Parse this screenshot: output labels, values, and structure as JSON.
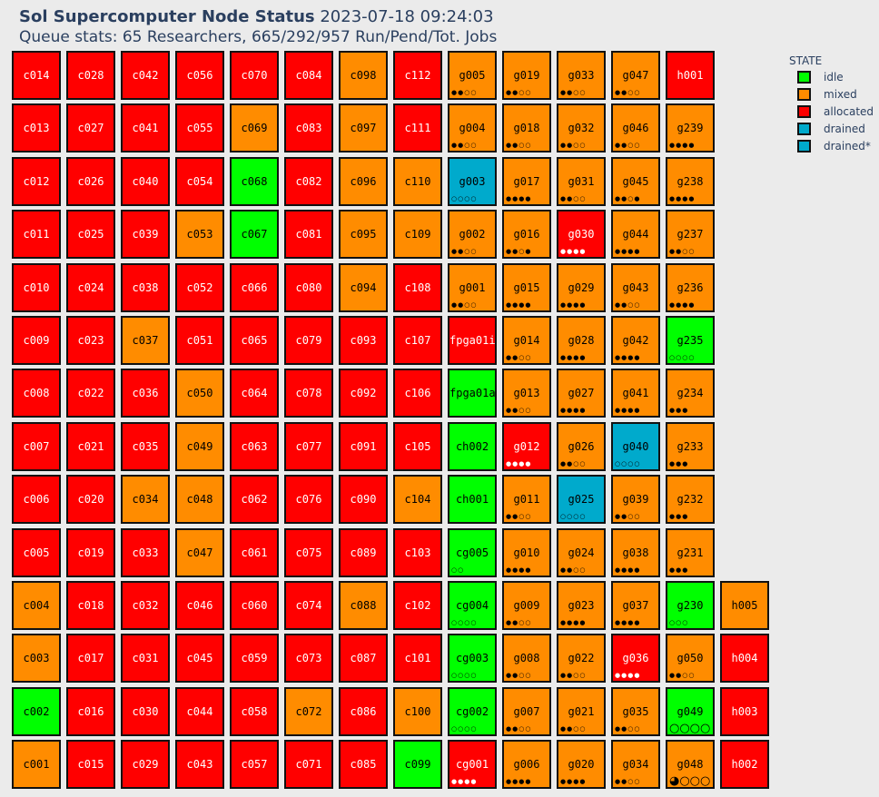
{
  "header": {
    "title": "Sol Supercomputer Node Status",
    "timestamp": "2023-07-18 09:24:03",
    "queue_stats": "Queue stats: 65 Researchers, 665/292/957 Run/Pend/Tot. Jobs"
  },
  "colors": {
    "idle": "#00ff00",
    "mixed": "#ff8c00",
    "allocated": "#ff0000",
    "drained": "#00aacc",
    "drained*": "#00aacc"
  },
  "legend": {
    "title": "STATE",
    "items": [
      {
        "label": "idle",
        "state": "idle"
      },
      {
        "label": "mixed",
        "state": "mixed"
      },
      {
        "label": "allocated",
        "state": "allocated"
      },
      {
        "label": "drained",
        "state": "drained"
      },
      {
        "label": "drained*",
        "state": "drained*"
      }
    ]
  },
  "columns": [
    {
      "nodes": [
        {
          "name": "c014",
          "state": "allocated"
        },
        {
          "name": "c013",
          "state": "allocated"
        },
        {
          "name": "c012",
          "state": "allocated"
        },
        {
          "name": "c011",
          "state": "allocated"
        },
        {
          "name": "c010",
          "state": "allocated"
        },
        {
          "name": "c009",
          "state": "allocated"
        },
        {
          "name": "c008",
          "state": "allocated"
        },
        {
          "name": "c007",
          "state": "allocated"
        },
        {
          "name": "c006",
          "state": "allocated"
        },
        {
          "name": "c005",
          "state": "allocated"
        },
        {
          "name": "c004",
          "state": "mixed"
        },
        {
          "name": "c003",
          "state": "mixed"
        },
        {
          "name": "c002",
          "state": "idle"
        },
        {
          "name": "c001",
          "state": "mixed"
        }
      ]
    },
    {
      "nodes": [
        {
          "name": "c028",
          "state": "allocated"
        },
        {
          "name": "c027",
          "state": "allocated"
        },
        {
          "name": "c026",
          "state": "allocated"
        },
        {
          "name": "c025",
          "state": "allocated"
        },
        {
          "name": "c024",
          "state": "allocated"
        },
        {
          "name": "c023",
          "state": "allocated"
        },
        {
          "name": "c022",
          "state": "allocated"
        },
        {
          "name": "c021",
          "state": "allocated"
        },
        {
          "name": "c020",
          "state": "allocated"
        },
        {
          "name": "c019",
          "state": "allocated"
        },
        {
          "name": "c018",
          "state": "allocated"
        },
        {
          "name": "c017",
          "state": "allocated"
        },
        {
          "name": "c016",
          "state": "allocated"
        },
        {
          "name": "c015",
          "state": "allocated"
        }
      ]
    },
    {
      "nodes": [
        {
          "name": "c042",
          "state": "allocated"
        },
        {
          "name": "c041",
          "state": "allocated"
        },
        {
          "name": "c040",
          "state": "allocated"
        },
        {
          "name": "c039",
          "state": "allocated"
        },
        {
          "name": "c038",
          "state": "allocated"
        },
        {
          "name": "c037",
          "state": "mixed"
        },
        {
          "name": "c036",
          "state": "allocated"
        },
        {
          "name": "c035",
          "state": "allocated"
        },
        {
          "name": "c034",
          "state": "mixed"
        },
        {
          "name": "c033",
          "state": "allocated"
        },
        {
          "name": "c032",
          "state": "allocated"
        },
        {
          "name": "c031",
          "state": "allocated"
        },
        {
          "name": "c030",
          "state": "allocated"
        },
        {
          "name": "c029",
          "state": "allocated"
        }
      ]
    },
    {
      "nodes": [
        {
          "name": "c056",
          "state": "allocated"
        },
        {
          "name": "c055",
          "state": "allocated"
        },
        {
          "name": "c054",
          "state": "allocated"
        },
        {
          "name": "c053",
          "state": "mixed"
        },
        {
          "name": "c052",
          "state": "allocated"
        },
        {
          "name": "c051",
          "state": "allocated"
        },
        {
          "name": "c050",
          "state": "mixed"
        },
        {
          "name": "c049",
          "state": "mixed"
        },
        {
          "name": "c048",
          "state": "mixed"
        },
        {
          "name": "c047",
          "state": "mixed"
        },
        {
          "name": "c046",
          "state": "allocated"
        },
        {
          "name": "c045",
          "state": "allocated"
        },
        {
          "name": "c044",
          "state": "allocated"
        },
        {
          "name": "c043",
          "state": "allocated"
        }
      ]
    },
    {
      "nodes": [
        {
          "name": "c070",
          "state": "allocated"
        },
        {
          "name": "c069",
          "state": "mixed"
        },
        {
          "name": "c068",
          "state": "idle"
        },
        {
          "name": "c067",
          "state": "idle"
        },
        {
          "name": "c066",
          "state": "allocated"
        },
        {
          "name": "c065",
          "state": "allocated"
        },
        {
          "name": "c064",
          "state": "allocated"
        },
        {
          "name": "c063",
          "state": "allocated"
        },
        {
          "name": "c062",
          "state": "allocated"
        },
        {
          "name": "c061",
          "state": "allocated"
        },
        {
          "name": "c060",
          "state": "allocated"
        },
        {
          "name": "c059",
          "state": "allocated"
        },
        {
          "name": "c058",
          "state": "allocated"
        },
        {
          "name": "c057",
          "state": "allocated"
        }
      ]
    },
    {
      "nodes": [
        {
          "name": "c084",
          "state": "allocated"
        },
        {
          "name": "c083",
          "state": "allocated"
        },
        {
          "name": "c082",
          "state": "allocated"
        },
        {
          "name": "c081",
          "state": "allocated"
        },
        {
          "name": "c080",
          "state": "allocated"
        },
        {
          "name": "c079",
          "state": "allocated"
        },
        {
          "name": "c078",
          "state": "allocated"
        },
        {
          "name": "c077",
          "state": "allocated"
        },
        {
          "name": "c076",
          "state": "allocated"
        },
        {
          "name": "c075",
          "state": "allocated"
        },
        {
          "name": "c074",
          "state": "allocated"
        },
        {
          "name": "c073",
          "state": "allocated"
        },
        {
          "name": "c072",
          "state": "mixed"
        },
        {
          "name": "c071",
          "state": "allocated"
        }
      ]
    },
    {
      "nodes": [
        {
          "name": "c098",
          "state": "mixed"
        },
        {
          "name": "c097",
          "state": "mixed"
        },
        {
          "name": "c096",
          "state": "mixed"
        },
        {
          "name": "c095",
          "state": "mixed"
        },
        {
          "name": "c094",
          "state": "mixed"
        },
        {
          "name": "c093",
          "state": "allocated"
        },
        {
          "name": "c092",
          "state": "allocated"
        },
        {
          "name": "c091",
          "state": "allocated"
        },
        {
          "name": "c090",
          "state": "allocated"
        },
        {
          "name": "c089",
          "state": "allocated"
        },
        {
          "name": "c088",
          "state": "mixed"
        },
        {
          "name": "c087",
          "state": "allocated"
        },
        {
          "name": "c086",
          "state": "allocated"
        },
        {
          "name": "c085",
          "state": "allocated"
        }
      ]
    },
    {
      "nodes": [
        {
          "name": "c112",
          "state": "allocated"
        },
        {
          "name": "c111",
          "state": "allocated"
        },
        {
          "name": "c110",
          "state": "mixed"
        },
        {
          "name": "c109",
          "state": "mixed"
        },
        {
          "name": "c108",
          "state": "allocated"
        },
        {
          "name": "c107",
          "state": "allocated"
        },
        {
          "name": "c106",
          "state": "allocated"
        },
        {
          "name": "c105",
          "state": "allocated"
        },
        {
          "name": "c104",
          "state": "mixed"
        },
        {
          "name": "c103",
          "state": "allocated"
        },
        {
          "name": "c102",
          "state": "allocated"
        },
        {
          "name": "c101",
          "state": "allocated"
        },
        {
          "name": "c100",
          "state": "mixed"
        },
        {
          "name": "c099",
          "state": "idle"
        }
      ]
    },
    {
      "nodes": [
        {
          "name": "g005",
          "state": "mixed",
          "gpu": "●●○○"
        },
        {
          "name": "g004",
          "state": "mixed",
          "gpu": "●●○○"
        },
        {
          "name": "g003",
          "state": "drained",
          "gpu": "○○○○"
        },
        {
          "name": "g002",
          "state": "mixed",
          "gpu": "●●○○"
        },
        {
          "name": "g001",
          "state": "mixed",
          "gpu": "●●○○"
        },
        {
          "name": "fpga01i",
          "state": "allocated"
        },
        {
          "name": "fpga01a",
          "state": "idle"
        },
        {
          "name": "ch002",
          "state": "idle"
        },
        {
          "name": "ch001",
          "state": "idle"
        },
        {
          "name": "cg005",
          "state": "idle",
          "gpu": "○○"
        },
        {
          "name": "cg004",
          "state": "idle",
          "gpu": "○○○○"
        },
        {
          "name": "cg003",
          "state": "idle",
          "gpu": "○○○○"
        },
        {
          "name": "cg002",
          "state": "idle",
          "gpu": "○○○○"
        },
        {
          "name": "cg001",
          "state": "allocated",
          "gpu": "●●●●"
        }
      ]
    },
    {
      "nodes": [
        {
          "name": "g019",
          "state": "mixed",
          "gpu": "●●○○"
        },
        {
          "name": "g018",
          "state": "mixed",
          "gpu": "●●○○"
        },
        {
          "name": "g017",
          "state": "mixed",
          "gpu": "●●●●"
        },
        {
          "name": "g016",
          "state": "mixed",
          "gpu": "●●○●"
        },
        {
          "name": "g015",
          "state": "mixed",
          "gpu": "●●●●"
        },
        {
          "name": "g014",
          "state": "mixed",
          "gpu": "●●○○"
        },
        {
          "name": "g013",
          "state": "mixed",
          "gpu": "●●○○"
        },
        {
          "name": "g012",
          "state": "allocated",
          "gpu": "●●●●"
        },
        {
          "name": "g011",
          "state": "mixed",
          "gpu": "●●○○"
        },
        {
          "name": "g010",
          "state": "mixed",
          "gpu": "●●●●"
        },
        {
          "name": "g009",
          "state": "mixed",
          "gpu": "●●○○"
        },
        {
          "name": "g008",
          "state": "mixed",
          "gpu": "●●○○"
        },
        {
          "name": "g007",
          "state": "mixed",
          "gpu": "●●○○"
        },
        {
          "name": "g006",
          "state": "mixed",
          "gpu": "●●●●"
        }
      ]
    },
    {
      "nodes": [
        {
          "name": "g033",
          "state": "mixed",
          "gpu": "●●○○"
        },
        {
          "name": "g032",
          "state": "mixed",
          "gpu": "●●○○"
        },
        {
          "name": "g031",
          "state": "mixed",
          "gpu": "●●○○"
        },
        {
          "name": "g030",
          "state": "allocated",
          "gpu": "●●●●"
        },
        {
          "name": "g029",
          "state": "mixed",
          "gpu": "●●●●"
        },
        {
          "name": "g028",
          "state": "mixed",
          "gpu": "●●●●"
        },
        {
          "name": "g027",
          "state": "mixed",
          "gpu": "●●●●"
        },
        {
          "name": "g026",
          "state": "mixed",
          "gpu": "●●○○"
        },
        {
          "name": "g025",
          "state": "drained",
          "gpu": "○○○○"
        },
        {
          "name": "g024",
          "state": "mixed",
          "gpu": "●●○○"
        },
        {
          "name": "g023",
          "state": "mixed",
          "gpu": "●●●●"
        },
        {
          "name": "g022",
          "state": "mixed",
          "gpu": "●●○○"
        },
        {
          "name": "g021",
          "state": "mixed",
          "gpu": "●●○○"
        },
        {
          "name": "g020",
          "state": "mixed",
          "gpu": "●●●●"
        }
      ]
    },
    {
      "nodes": [
        {
          "name": "g047",
          "state": "mixed",
          "gpu": "●●○○"
        },
        {
          "name": "g046",
          "state": "mixed",
          "gpu": "●●○○"
        },
        {
          "name": "g045",
          "state": "mixed",
          "gpu": "●●○●"
        },
        {
          "name": "g044",
          "state": "mixed",
          "gpu": "●●●●"
        },
        {
          "name": "g043",
          "state": "mixed",
          "gpu": "●●○○"
        },
        {
          "name": "g042",
          "state": "mixed",
          "gpu": "●●●●"
        },
        {
          "name": "g041",
          "state": "mixed",
          "gpu": "●●●●"
        },
        {
          "name": "g040",
          "state": "drained",
          "gpu": "○○○○"
        },
        {
          "name": "g039",
          "state": "mixed",
          "gpu": "●●○○"
        },
        {
          "name": "g038",
          "state": "mixed",
          "gpu": "●●●●"
        },
        {
          "name": "g037",
          "state": "mixed",
          "gpu": "●●●●"
        },
        {
          "name": "g036",
          "state": "allocated",
          "gpu": "●●●●"
        },
        {
          "name": "g035",
          "state": "mixed",
          "gpu": "●●○○"
        },
        {
          "name": "g034",
          "state": "mixed",
          "gpu": "●●○○"
        }
      ]
    },
    {
      "nodes": [
        {
          "name": "h001",
          "state": "allocated"
        },
        {
          "name": "g239",
          "state": "mixed",
          "gpu": "●●●●"
        },
        {
          "name": "g238",
          "state": "mixed",
          "gpu": "●●●●"
        },
        {
          "name": "g237",
          "state": "mixed",
          "gpu": "●●○○"
        },
        {
          "name": "g236",
          "state": "mixed",
          "gpu": "●●●●"
        },
        {
          "name": "g235",
          "state": "idle",
          "gpu": "○○○○"
        },
        {
          "name": "g234",
          "state": "mixed",
          "gpu": "●●●"
        },
        {
          "name": "g233",
          "state": "mixed",
          "gpu": "●●●"
        },
        {
          "name": "g232",
          "state": "mixed",
          "gpu": "●●●"
        },
        {
          "name": "g231",
          "state": "mixed",
          "gpu": "●●●"
        },
        {
          "name": "g230",
          "state": "idle",
          "gpu": "○○○"
        },
        {
          "name": "g050",
          "state": "mixed",
          "gpu": "●●○○"
        },
        {
          "name": "g049",
          "state": "idle",
          "gpu": "○○○○",
          "gpu_large": true
        },
        {
          "name": "g048",
          "state": "mixed",
          "gpu": "◕○○○",
          "gpu_large": true
        }
      ]
    },
    {
      "offset": 10,
      "nodes": [
        {
          "name": "h005",
          "state": "mixed"
        },
        {
          "name": "h004",
          "state": "allocated"
        },
        {
          "name": "h003",
          "state": "allocated"
        },
        {
          "name": "h002",
          "state": "allocated"
        }
      ]
    }
  ]
}
